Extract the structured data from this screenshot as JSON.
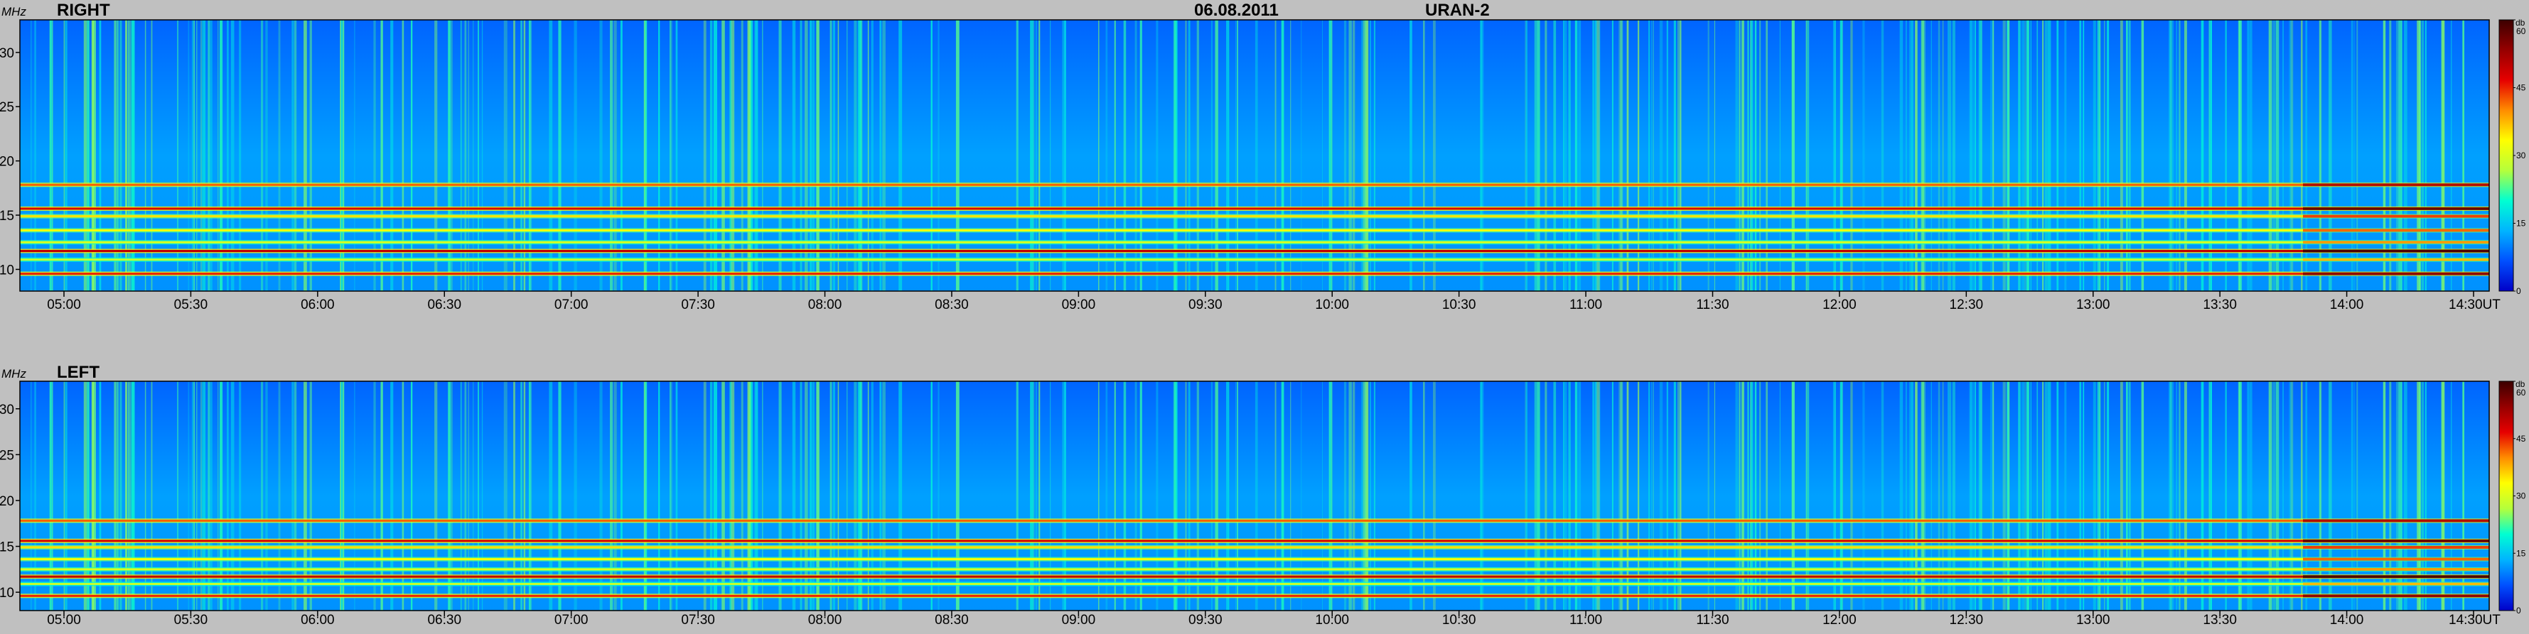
{
  "header": {
    "date": "06.08.2011",
    "instrument": "URAN-2"
  },
  "colorbar": {
    "unit": "db",
    "ticks": [
      "0",
      "15",
      "30",
      "45",
      "60"
    ],
    "range": [
      0,
      60
    ],
    "stops": [
      "#0000c8",
      "#0050ff",
      "#00b4ff",
      "#00ffd2",
      "#b4ff3c",
      "#ffff00",
      "#ff8c00",
      "#e60000",
      "#960000",
      "#3c0000"
    ]
  },
  "chart_data": [
    {
      "type": "heatmap",
      "title": "RIGHT",
      "ylabel": "MHz",
      "xlabel": "UT",
      "ylim": [
        8,
        33
      ],
      "yticks": [
        "10",
        "15",
        "20",
        "25",
        "30"
      ],
      "xticks": [
        "05:00",
        "05:30",
        "06:00",
        "06:30",
        "07:00",
        "07:30",
        "08:00",
        "08:30",
        "09:00",
        "09:30",
        "10:00",
        "10:30",
        "11:00",
        "11:30",
        "12:00",
        "12:30",
        "13:00",
        "13:30",
        "14:00",
        "14:30"
      ],
      "x_end_suffix": "UT",
      "background_level_db": 12,
      "interference_bands_mhz": [
        {
          "freq": 17.8,
          "level_db": 42
        },
        {
          "freq": 15.6,
          "level_db": 48
        },
        {
          "freq": 14.9,
          "level_db": 35
        },
        {
          "freq": 13.6,
          "level_db": 33
        },
        {
          "freq": 12.5,
          "level_db": 30
        },
        {
          "freq": 11.7,
          "level_db": 50
        },
        {
          "freq": 10.9,
          "level_db": 28
        },
        {
          "freq": 9.6,
          "level_db": 45
        }
      ]
    },
    {
      "type": "heatmap",
      "title": "LEFT",
      "ylabel": "MHz",
      "xlabel": "UT",
      "ylim": [
        8,
        33
      ],
      "yticks": [
        "10",
        "15",
        "20",
        "25",
        "30"
      ],
      "xticks": [
        "05:00",
        "05:30",
        "06:00",
        "06:30",
        "07:00",
        "07:30",
        "08:00",
        "08:30",
        "09:00",
        "09:30",
        "10:00",
        "10:30",
        "11:00",
        "11:30",
        "12:00",
        "12:30",
        "13:00",
        "13:30",
        "14:00",
        "14:30"
      ],
      "x_end_suffix": "UT",
      "background_level_db": 12,
      "interference_bands_mhz": [
        {
          "freq": 17.8,
          "level_db": 42
        },
        {
          "freq": 15.6,
          "level_db": 48
        },
        {
          "freq": 14.9,
          "level_db": 35
        },
        {
          "freq": 13.6,
          "level_db": 33
        },
        {
          "freq": 12.5,
          "level_db": 30
        },
        {
          "freq": 11.7,
          "level_db": 50
        },
        {
          "freq": 10.9,
          "level_db": 28
        },
        {
          "freq": 9.6,
          "level_db": 45
        }
      ]
    }
  ]
}
